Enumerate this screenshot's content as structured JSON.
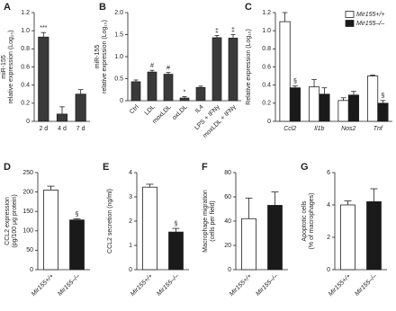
{
  "chart_data": [
    {
      "type": "bar",
      "panel": "A",
      "y_label": [
        "miR-155",
        "relative expression (Log₁₀)"
      ],
      "categories": [
        "2 d",
        "4 d",
        "7 d"
      ],
      "values": [
        0.93,
        0.08,
        0.3
      ],
      "errors": [
        0.05,
        0.08,
        0.05
      ],
      "annotations": [
        "***",
        null,
        null
      ],
      "color": "#3a3a3a",
      "ylim": [
        0,
        1.2
      ],
      "yticks": [
        0,
        0.2,
        0.4,
        0.6,
        0.8,
        {
          "value": 1,
          "label": "1.0"
        },
        1.2
      ]
    },
    {
      "type": "bar",
      "panel": "B",
      "y_label": [
        "miR-155",
        "relative expression (Log₁₀)"
      ],
      "categories": [
        "Ctrl",
        "LDL",
        "moxLDL",
        "oxLDL",
        "IL4",
        "LPS + IFNγ",
        "moxLDL + IFNγ"
      ],
      "values": [
        0.43,
        0.65,
        0.6,
        0.06,
        0.3,
        1.43,
        1.42
      ],
      "errors": [
        0.04,
        0.04,
        0.04,
        0.03,
        0.03,
        0.05,
        0.08
      ],
      "annotations": [
        null,
        "#",
        "#",
        "*",
        null,
        "‡",
        "‡"
      ],
      "color": "#3a3a3a",
      "ylim": [
        0,
        2
      ],
      "yticks": [
        0,
        0.5,
        {
          "value": 1,
          "label": "1.0"
        },
        1.5,
        {
          "value": 2,
          "label": "2.0"
        }
      ]
    },
    {
      "type": "bar",
      "panel": "C",
      "y_label": [
        "Relative expression (Log₁₀)"
      ],
      "categories": [
        "Ccl2",
        "Il1b",
        "Nos2",
        "Tnf"
      ],
      "legend": "top-right",
      "series": [
        {
          "name": "Mir155+/+",
          "color": "#ffffff",
          "values": [
            1.1,
            0.38,
            0.23,
            0.5
          ],
          "errors": [
            0.1,
            0.08,
            0.03,
            0.01
          ],
          "annotations": [
            null,
            null,
            null,
            null
          ]
        },
        {
          "name": "Mir155–/–",
          "color": "#1a1a1a",
          "values": [
            0.37,
            0.3,
            0.29,
            0.2
          ],
          "errors": [
            0.02,
            0.07,
            0.04,
            0.03
          ],
          "annotations": [
            "§",
            null,
            null,
            "§"
          ]
        }
      ],
      "ylim": [
        0,
        1.2
      ],
      "yticks": [
        0,
        0.2,
        0.4,
        0.6,
        0.8,
        {
          "value": 1,
          "label": "1.0"
        },
        1.2
      ]
    },
    {
      "type": "bar",
      "panel": "D",
      "y_label": [
        "CCL2 expression",
        "(pg/100 μg protein)"
      ],
      "categories": [
        "Mir155+/+",
        "Mir155–/–"
      ],
      "values": [
        205,
        128
      ],
      "errors": [
        10,
        3
      ],
      "annotations": [
        null,
        "§"
      ],
      "colors": [
        "#ffffff",
        "#1a1a1a"
      ],
      "ylim": [
        0,
        250
      ],
      "yticks": [
        0,
        50,
        100,
        150,
        200,
        250
      ]
    },
    {
      "type": "bar",
      "panel": "E",
      "y_label": [
        "CCL2 secretion (ng/ml)"
      ],
      "categories": [
        "Mir155+/+",
        "Mir155–/–"
      ],
      "values": [
        3.4,
        1.55
      ],
      "errors": [
        0.12,
        0.15
      ],
      "annotations": [
        null,
        "§"
      ],
      "colors": [
        "#ffffff",
        "#1a1a1a"
      ],
      "ylim": [
        0,
        4
      ],
      "yticks": [
        0,
        1,
        2,
        3,
        4
      ]
    },
    {
      "type": "bar",
      "panel": "F",
      "y_label": [
        "Macrophage migration",
        "(cells per field)"
      ],
      "categories": [
        "Mir155+/+",
        "Mir155–/–"
      ],
      "values": [
        42,
        53
      ],
      "errors": [
        17,
        11
      ],
      "annotations": [
        null,
        null
      ],
      "colors": [
        "#ffffff",
        "#1a1a1a"
      ],
      "ylim": [
        0,
        80
      ],
      "yticks": [
        0,
        20,
        40,
        60,
        80
      ]
    },
    {
      "type": "bar",
      "panel": "G",
      "y_label": [
        "Apoptotic cells",
        "(% of macrophages)"
      ],
      "categories": [
        "Mir155+/+",
        "Mir155–/–"
      ],
      "values": [
        4.0,
        4.2
      ],
      "errors": [
        0.25,
        0.8
      ],
      "annotations": [
        null,
        null
      ],
      "colors": [
        "#ffffff",
        "#1a1a1a"
      ],
      "ylim": [
        0,
        6
      ],
      "yticks": [
        0,
        2,
        4,
        6
      ]
    }
  ]
}
